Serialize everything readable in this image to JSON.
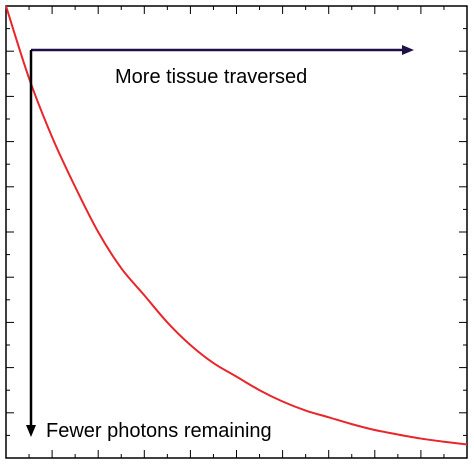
{
  "chart_data": {
    "type": "line",
    "title": "",
    "xlabel": "",
    "ylabel": "",
    "xlim": [
      0,
      1
    ],
    "ylim": [
      0,
      1
    ],
    "grid": false,
    "legend": "none",
    "series": [
      {
        "color": "#e8262b",
        "x": [
          0,
          0.05,
          0.1,
          0.15,
          0.2,
          0.25,
          0.3,
          0.35,
          0.4,
          0.45,
          0.5,
          0.55,
          0.6,
          0.65,
          0.7,
          0.75,
          0.8,
          0.85,
          0.9,
          0.95,
          1
        ],
        "y": [
          1.0,
          0.84,
          0.71,
          0.6,
          0.5,
          0.42,
          0.36,
          0.3,
          0.25,
          0.21,
          0.18,
          0.15,
          0.125,
          0.105,
          0.09,
          0.075,
          0.062,
          0.052,
          0.043,
          0.036,
          0.03
        ]
      }
    ],
    "annotations": [
      {
        "name": "x-arrow",
        "text": "More tissue traversed",
        "color": "#1f1147"
      },
      {
        "name": "y-arrow",
        "text": "Fewer photons remaining",
        "color": "#000000"
      }
    ]
  }
}
